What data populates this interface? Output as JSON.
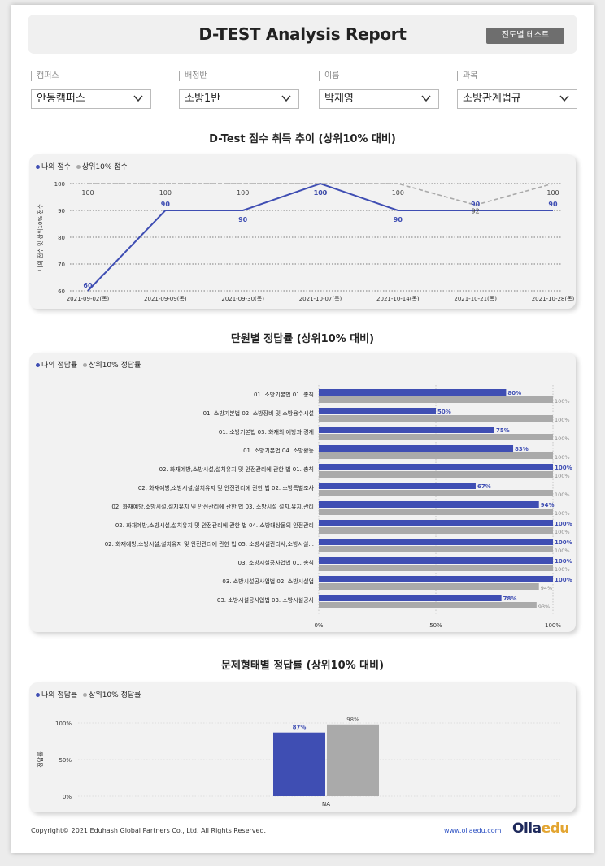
{
  "header": {
    "title": "D-TEST Analysis Report",
    "progress_button": "진도별 테스트"
  },
  "filters": [
    {
      "label": "캠퍼스",
      "value": "안동캠퍼스"
    },
    {
      "label": "배정반",
      "value": "소방1반"
    },
    {
      "label": "이름",
      "value": "박재영"
    },
    {
      "label": "과목",
      "value": "소방관계법규"
    }
  ],
  "colors": {
    "mine": "#3f4eb3",
    "top10": "#aaaaaa",
    "card": "#f2f2f2"
  },
  "sections": {
    "trend_title": "D-Test 점수 취득 추이 (상위10% 대비)",
    "unit_title": "단원별 정답률 (상위10% 대비)",
    "type_title": "문제형태별 정답률 (상위10% 대비)"
  },
  "legends": {
    "trend": {
      "mine": "나의 점수",
      "top10": "상위10% 점수"
    },
    "unit": {
      "mine": "나의 정답률",
      "top10": "상위10% 정답률"
    },
    "type": {
      "mine": "나의 정답률",
      "top10": "상위10% 정답률"
    }
  },
  "chart_data": [
    {
      "type": "line",
      "title": "D-Test 점수 취득 추이 (상위10% 대비)",
      "ylabel": "나의 점수 및 상위10% 점수",
      "ylim": [
        60,
        100
      ],
      "yticks": [
        "100",
        "90",
        "80",
        "70",
        "60"
      ],
      "x": [
        "2021-09-02(목)",
        "2021-09-09(목)",
        "2021-09-30(목)",
        "2021-10-07(목)",
        "2021-10-14(목)",
        "2021-10-21(목)",
        "2021-10-28(목)"
      ],
      "series": [
        {
          "name": "나의 점수",
          "values": [
            60,
            90,
            90,
            100,
            90,
            90,
            90
          ]
        },
        {
          "name": "상위10% 점수",
          "values": [
            100,
            100,
            100,
            100,
            100,
            92,
            100
          ]
        }
      ],
      "grid": true,
      "legend": "top-left"
    },
    {
      "type": "bar",
      "orientation": "horizontal",
      "title": "단원별 정답률 (상위10% 대비)",
      "categories": [
        "01. 소방기본법 01. 총칙",
        "01. 소방기본법 02. 소방장비 및 소방용수시설",
        "01. 소방기본법 03. 화재의 예방과 경계",
        "01. 소방기본법 04. 소방활동",
        "02. 화재예방,소방시설,설치유지 및 안전관리에 관한 법 01. 총칙",
        "02. 화재예방,소방시설,설치유지 및 안전관리에 관한 법 02. 소방특별조사",
        "02. 화재예방,소방시설,설치유지 및 안전관리에 관한 법 03. 소방시설 설치,유지,관리",
        "02. 화재예방,소방시설,설치유지 및 안전관리에 관한 법 04. 소방대상물의 안전관리",
        "02. 화재예방,소방시설,설치유지 및 안전관리에 관한 법 05. 소방시설관리사,소방시설...",
        "03. 소방시설공사업법 01. 총칙",
        "03. 소방시설공사업법 02. 소방시설업",
        "03. 소방시설공사업법 03. 소방시설공사"
      ],
      "series": [
        {
          "name": "나의 정답률",
          "values": [
            80,
            50,
            75,
            83,
            100,
            67,
            94,
            100,
            100,
            100,
            100,
            78
          ]
        },
        {
          "name": "상위10% 정답률",
          "values": [
            100,
            100,
            100,
            100,
            100,
            100,
            100,
            100,
            100,
            100,
            94,
            93
          ]
        }
      ],
      "xticks": [
        "0%",
        "50%",
        "100%"
      ],
      "xlim": [
        0,
        100
      ],
      "legend": "top-left"
    },
    {
      "type": "bar",
      "title": "문제형태별 정답률 (상위10% 대비)",
      "categories": [
        "NA"
      ],
      "ylabel": "정답률",
      "series": [
        {
          "name": "나의 정답률",
          "values": [
            87
          ]
        },
        {
          "name": "상위10% 정답률",
          "values": [
            98
          ]
        }
      ],
      "yticks": [
        "100%",
        "50%",
        "0%"
      ],
      "ylim": [
        0,
        100
      ],
      "legend": "top-left"
    }
  ],
  "footer": {
    "copyright": "Copyright© 2021 Eduhash Global Partners Co., Ltd. All Rights Reserved.",
    "link": "www.ollaedu.com",
    "logo_main": "Olla",
    "logo_accent": "edu"
  }
}
